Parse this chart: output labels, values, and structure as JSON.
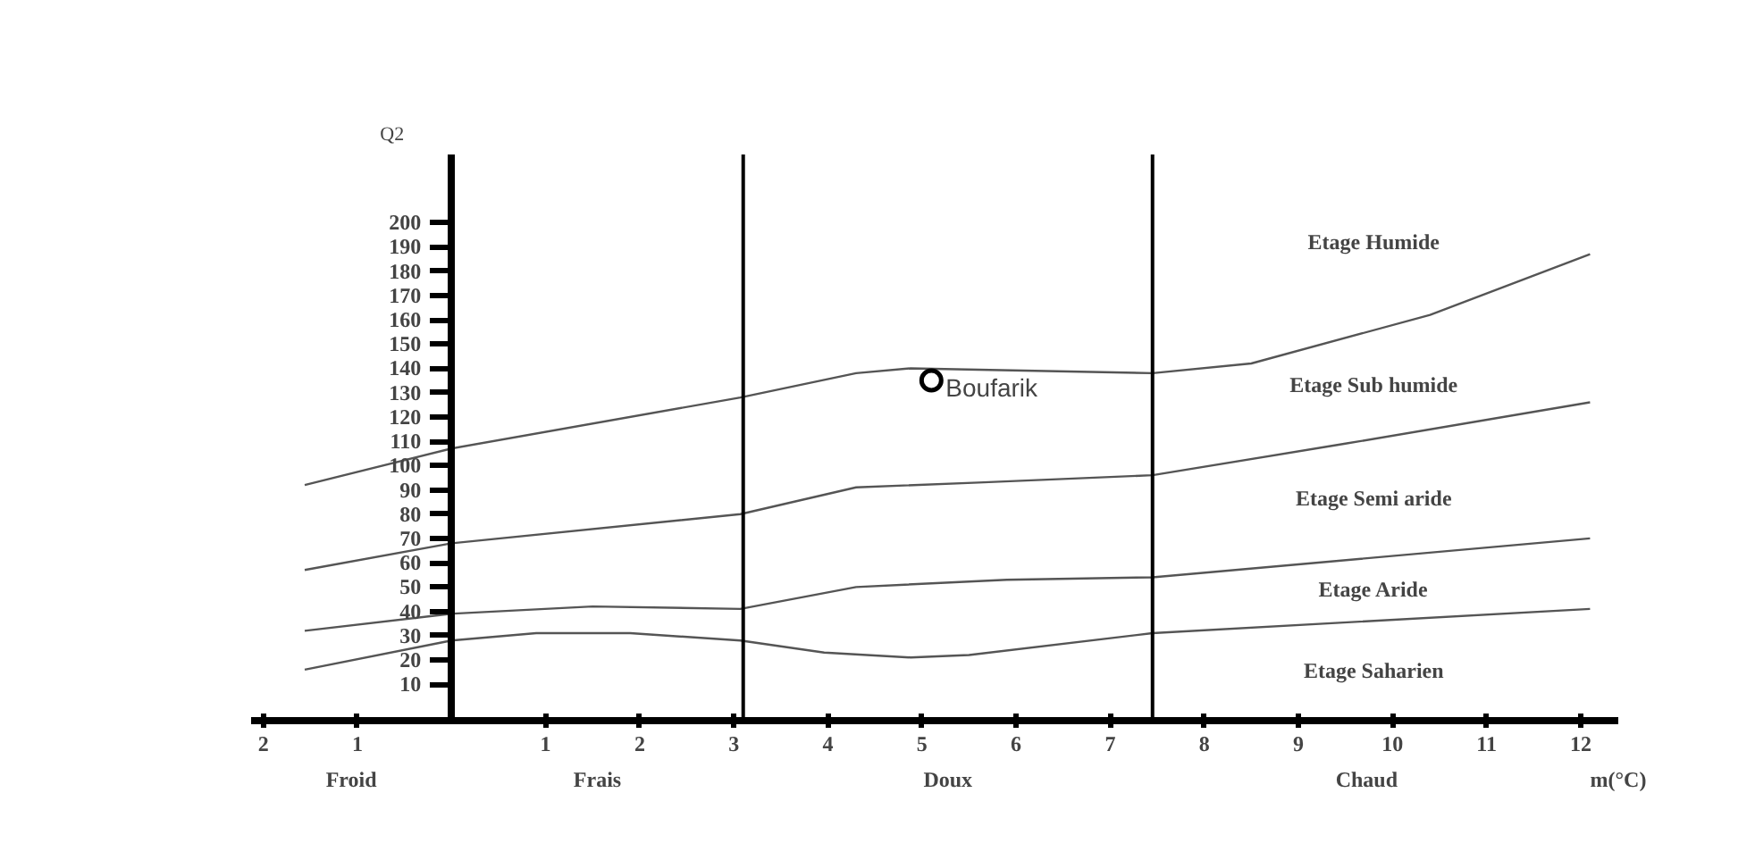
{
  "chart_data": {
    "type": "line",
    "xlabel": "m(°C)",
    "ylabel": "Q2",
    "xlim": [
      -2.13,
      12.4
    ],
    "ylim": [
      -5,
      228
    ],
    "xticks": [
      {
        "value": -2,
        "label": "2"
      },
      {
        "value": -1,
        "label": "1"
      },
      1,
      2,
      3,
      4,
      5,
      6,
      7,
      8,
      9,
      10,
      11,
      12
    ],
    "yticks": [
      10,
      20,
      30,
      40,
      50,
      60,
      70,
      80,
      90,
      100,
      110,
      120,
      130,
      140,
      150,
      160,
      170,
      180,
      190,
      200
    ],
    "grid": false,
    "line_style": "solid",
    "series": [
      {
        "color": "#555555",
        "x": [
          -1.56,
          0,
          3.07,
          4.3,
          4.88,
          7.45,
          8.5,
          10.4,
          12.1
        ],
        "values": [
          92,
          107,
          128,
          138,
          140,
          138,
          142,
          162,
          187
        ]
      },
      {
        "color": "#555555",
        "x": [
          -1.56,
          0,
          3.07,
          4.3,
          5.6,
          7.45,
          9.5,
          12.1
        ],
        "values": [
          57,
          68,
          80,
          91,
          93,
          96,
          109,
          126
        ]
      },
      {
        "color": "#555555",
        "x": [
          -1.56,
          0,
          1.5,
          3.07,
          4.3,
          5.9,
          7.45,
          12.1
        ],
        "values": [
          32,
          39,
          42,
          41,
          50,
          53,
          54,
          70
        ]
      },
      {
        "color": "#555555",
        "x": [
          -1.56,
          0,
          0.9,
          1.9,
          3.07,
          3.96,
          4.88,
          5.5,
          7.45,
          12.1
        ],
        "values": [
          16,
          28,
          31,
          31,
          28,
          23,
          21,
          22,
          31,
          41
        ]
      },
      {
        "type": "scatter",
        "name": "Boufarik",
        "marker": "circle",
        "color": "#000000",
        "x": [
          5.1
        ],
        "values": [
          135
        ]
      }
    ],
    "ref_lines": [
      {
        "axis": "x",
        "value": 3.1,
        "color": "#000000"
      },
      {
        "axis": "x",
        "value": 7.45,
        "color": "#000000"
      }
    ],
    "annotations": [
      "Etage Humide",
      "Etage Sub humide",
      "Etage Semi aride",
      "Etage Aride",
      "Etage Saharien",
      "Froid",
      "Frais",
      "Doux",
      "Chaud"
    ]
  }
}
